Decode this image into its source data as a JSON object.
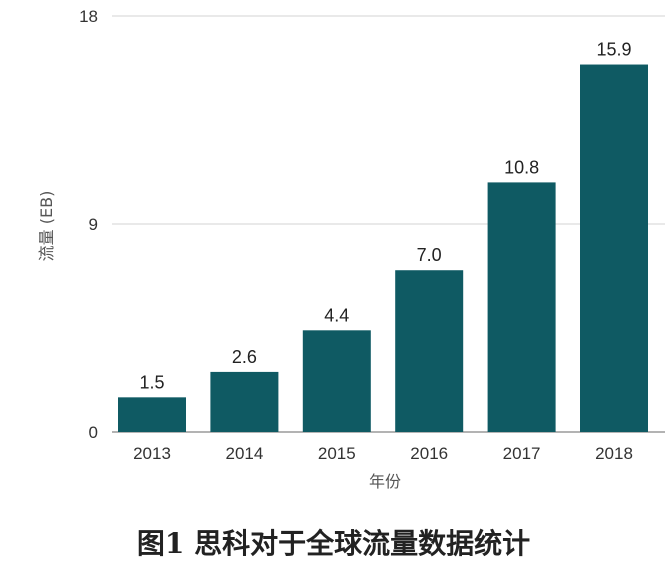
{
  "caption": "图1 思科对于全球流量数据统计",
  "chart_data": {
    "type": "bar",
    "categories": [
      "2013",
      "2014",
      "2015",
      "2016",
      "2017",
      "2018"
    ],
    "values": [
      1.5,
      2.6,
      4.4,
      7.0,
      10.8,
      15.9
    ],
    "value_labels": [
      "1.5",
      "2.6",
      "4.4",
      "7.0",
      "10.8",
      "15.9"
    ],
    "xlabel": "年份",
    "ylabel": "流量 (EB)",
    "ylim": [
      0,
      18
    ],
    "yticks": [
      0,
      9,
      18
    ],
    "grid": true,
    "bar_color": "#0f5a63"
  }
}
